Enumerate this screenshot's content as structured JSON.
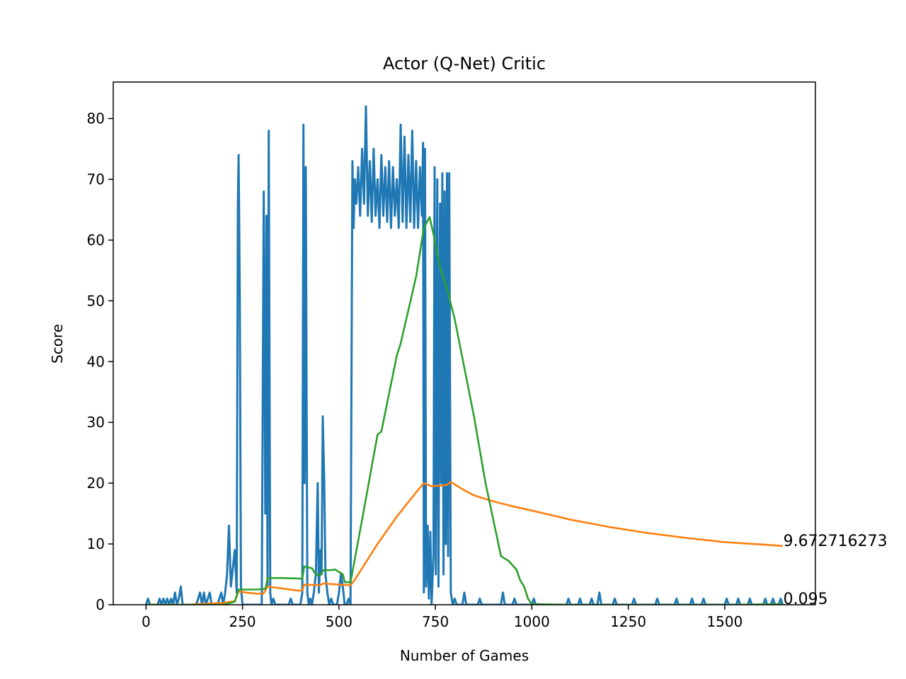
{
  "chart_data": {
    "type": "line",
    "title": "Actor (Q-Net) Critic",
    "xlabel": "Number of Games",
    "ylabel": "Score",
    "xlim": [
      -85,
      1735
    ],
    "ylim": [
      0,
      86
    ],
    "x_ticks": [
      0,
      250,
      500,
      750,
      1000,
      1250,
      1500
    ],
    "y_ticks": [
      0,
      10,
      20,
      30,
      40,
      50,
      60,
      70,
      80
    ],
    "grid": false,
    "legend": "none",
    "series": [
      {
        "color": "#1f77b4",
        "points": [
          [
            0,
            0
          ],
          [
            5,
            1
          ],
          [
            10,
            0
          ],
          [
            30,
            0
          ],
          [
            35,
            1
          ],
          [
            40,
            0
          ],
          [
            45,
            1
          ],
          [
            50,
            0
          ],
          [
            55,
            1
          ],
          [
            60,
            0
          ],
          [
            65,
            1
          ],
          [
            70,
            0
          ],
          [
            75,
            2
          ],
          [
            80,
            0
          ],
          [
            85,
            1
          ],
          [
            90,
            3
          ],
          [
            95,
            0
          ],
          [
            130,
            0
          ],
          [
            135,
            1
          ],
          [
            140,
            2
          ],
          [
            145,
            0
          ],
          [
            150,
            2
          ],
          [
            155,
            0
          ],
          [
            165,
            2
          ],
          [
            170,
            0
          ],
          [
            185,
            0
          ],
          [
            190,
            1
          ],
          [
            195,
            2
          ],
          [
            200,
            0
          ],
          [
            205,
            2
          ],
          [
            210,
            5
          ],
          [
            215,
            13
          ],
          [
            220,
            3
          ],
          [
            225,
            6
          ],
          [
            230,
            9
          ],
          [
            235,
            2
          ],
          [
            238,
            66
          ],
          [
            240,
            74
          ],
          [
            243,
            50
          ],
          [
            246,
            3
          ],
          [
            250,
            0
          ],
          [
            300,
            0
          ],
          [
            305,
            68
          ],
          [
            309,
            15
          ],
          [
            312,
            64
          ],
          [
            315,
            3
          ],
          [
            318,
            78
          ],
          [
            322,
            2
          ],
          [
            325,
            0
          ],
          [
            330,
            1
          ],
          [
            335,
            0
          ],
          [
            370,
            0
          ],
          [
            375,
            1
          ],
          [
            380,
            0
          ],
          [
            400,
            0
          ],
          [
            405,
            2
          ],
          [
            408,
            79
          ],
          [
            411,
            20
          ],
          [
            414,
            72
          ],
          [
            418,
            2
          ],
          [
            422,
            0
          ],
          [
            426,
            1
          ],
          [
            430,
            0
          ],
          [
            435,
            2
          ],
          [
            440,
            5
          ],
          [
            445,
            20
          ],
          [
            448,
            2
          ],
          [
            452,
            9
          ],
          [
            455,
            5
          ],
          [
            458,
            31
          ],
          [
            462,
            20
          ],
          [
            465,
            5
          ],
          [
            470,
            2
          ],
          [
            475,
            0
          ],
          [
            480,
            1
          ],
          [
            485,
            0
          ],
          [
            495,
            0
          ],
          [
            500,
            2
          ],
          [
            505,
            5
          ],
          [
            510,
            3
          ],
          [
            515,
            0
          ],
          [
            520,
            0
          ],
          [
            525,
            1
          ],
          [
            530,
            0
          ],
          [
            535,
            73
          ],
          [
            538,
            62
          ],
          [
            541,
            70
          ],
          [
            545,
            66
          ],
          [
            550,
            72
          ],
          [
            555,
            64
          ],
          [
            560,
            75
          ],
          [
            565,
            66
          ],
          [
            570,
            82
          ],
          [
            575,
            64
          ],
          [
            580,
            73
          ],
          [
            585,
            63
          ],
          [
            590,
            75
          ],
          [
            595,
            64
          ],
          [
            600,
            70
          ],
          [
            605,
            62
          ],
          [
            610,
            74
          ],
          [
            615,
            64
          ],
          [
            620,
            72
          ],
          [
            625,
            63
          ],
          [
            630,
            73
          ],
          [
            635,
            62
          ],
          [
            640,
            72
          ],
          [
            645,
            64
          ],
          [
            650,
            70
          ],
          [
            655,
            62
          ],
          [
            660,
            79
          ],
          [
            665,
            63
          ],
          [
            670,
            77
          ],
          [
            675,
            62
          ],
          [
            680,
            74
          ],
          [
            685,
            63
          ],
          [
            690,
            78
          ],
          [
            695,
            62
          ],
          [
            700,
            73
          ],
          [
            705,
            62
          ],
          [
            710,
            72
          ],
          [
            715,
            64
          ],
          [
            718,
            76
          ],
          [
            720,
            2
          ],
          [
            723,
            75
          ],
          [
            726,
            3
          ],
          [
            730,
            13
          ],
          [
            733,
            1
          ],
          [
            737,
            12
          ],
          [
            740,
            0
          ],
          [
            745,
            8
          ],
          [
            748,
            72
          ],
          [
            751,
            5
          ],
          [
            755,
            70
          ],
          [
            758,
            3
          ],
          [
            762,
            66
          ],
          [
            765,
            20
          ],
          [
            768,
            71
          ],
          [
            771,
            5
          ],
          [
            774,
            68
          ],
          [
            777,
            10
          ],
          [
            780,
            71
          ],
          [
            783,
            8
          ],
          [
            786,
            71
          ],
          [
            790,
            2
          ],
          [
            795,
            0
          ],
          [
            800,
            1
          ],
          [
            805,
            0
          ],
          [
            820,
            0
          ],
          [
            825,
            2
          ],
          [
            830,
            0
          ],
          [
            860,
            0
          ],
          [
            865,
            1
          ],
          [
            870,
            0
          ],
          [
            920,
            0
          ],
          [
            925,
            2
          ],
          [
            930,
            0
          ],
          [
            950,
            0
          ],
          [
            955,
            1
          ],
          [
            960,
            0
          ],
          [
            1000,
            0
          ],
          [
            1005,
            1
          ],
          [
            1010,
            0
          ],
          [
            1090,
            0
          ],
          [
            1095,
            1
          ],
          [
            1100,
            0
          ],
          [
            1120,
            0
          ],
          [
            1125,
            1
          ],
          [
            1130,
            0
          ],
          [
            1150,
            0
          ],
          [
            1155,
            1
          ],
          [
            1160,
            0
          ],
          [
            1170,
            0
          ],
          [
            1175,
            2
          ],
          [
            1180,
            0
          ],
          [
            1210,
            0
          ],
          [
            1215,
            1
          ],
          [
            1220,
            0
          ],
          [
            1260,
            0
          ],
          [
            1265,
            1
          ],
          [
            1270,
            0
          ],
          [
            1320,
            0
          ],
          [
            1325,
            1
          ],
          [
            1330,
            0
          ],
          [
            1370,
            0
          ],
          [
            1375,
            1
          ],
          [
            1380,
            0
          ],
          [
            1410,
            0
          ],
          [
            1415,
            1
          ],
          [
            1420,
            0
          ],
          [
            1440,
            0
          ],
          [
            1445,
            1
          ],
          [
            1450,
            0
          ],
          [
            1500,
            0
          ],
          [
            1505,
            1
          ],
          [
            1510,
            0
          ],
          [
            1530,
            0
          ],
          [
            1535,
            1
          ],
          [
            1540,
            0
          ],
          [
            1560,
            0
          ],
          [
            1565,
            1
          ],
          [
            1570,
            0
          ],
          [
            1600,
            0
          ],
          [
            1605,
            1
          ],
          [
            1610,
            0
          ],
          [
            1620,
            0
          ],
          [
            1625,
            1
          ],
          [
            1630,
            0
          ],
          [
            1640,
            0
          ],
          [
            1645,
            1
          ],
          [
            1650,
            0
          ]
        ]
      },
      {
        "color": "#ff7f0e",
        "points": [
          [
            0,
            0
          ],
          [
            100,
            0
          ],
          [
            200,
            0.3
          ],
          [
            230,
            0.6
          ],
          [
            240,
            2.2
          ],
          [
            260,
            2
          ],
          [
            290,
            1.8
          ],
          [
            305,
            1.9
          ],
          [
            315,
            3
          ],
          [
            350,
            2.7
          ],
          [
            395,
            2.3
          ],
          [
            405,
            2.4
          ],
          [
            410,
            3.3
          ],
          [
            450,
            3.2
          ],
          [
            460,
            3.5
          ],
          [
            500,
            3.3
          ],
          [
            530,
            3.2
          ],
          [
            540,
            4
          ],
          [
            560,
            6
          ],
          [
            600,
            10
          ],
          [
            650,
            14.5
          ],
          [
            700,
            18.5
          ],
          [
            720,
            20
          ],
          [
            740,
            19.5
          ],
          [
            760,
            19.6
          ],
          [
            780,
            19.7
          ],
          [
            790,
            20.2
          ],
          [
            820,
            19
          ],
          [
            850,
            18
          ],
          [
            900,
            17
          ],
          [
            950,
            16.2
          ],
          [
            1000,
            15.5
          ],
          [
            1100,
            14
          ],
          [
            1200,
            12.8
          ],
          [
            1300,
            11.8
          ],
          [
            1400,
            11
          ],
          [
            1500,
            10.3
          ],
          [
            1600,
            9.9
          ],
          [
            1650,
            9.67
          ]
        ]
      },
      {
        "color": "#2ca02c",
        "points": [
          [
            0,
            0
          ],
          [
            200,
            0
          ],
          [
            230,
            0.5
          ],
          [
            240,
            2.5
          ],
          [
            290,
            2.5
          ],
          [
            305,
            2.6
          ],
          [
            310,
            2.7
          ],
          [
            315,
            4.4
          ],
          [
            350,
            4.4
          ],
          [
            400,
            4.3
          ],
          [
            405,
            4.3
          ],
          [
            410,
            6.3
          ],
          [
            430,
            6
          ],
          [
            440,
            5
          ],
          [
            450,
            4.8
          ],
          [
            460,
            5.7
          ],
          [
            480,
            5.7
          ],
          [
            490,
            5.8
          ],
          [
            500,
            5.4
          ],
          [
            510,
            5
          ],
          [
            515,
            3.7
          ],
          [
            530,
            3.7
          ],
          [
            560,
            14
          ],
          [
            600,
            28
          ],
          [
            610,
            28.5
          ],
          [
            650,
            41
          ],
          [
            660,
            43
          ],
          [
            700,
            54
          ],
          [
            720,
            62
          ],
          [
            735,
            63.8
          ],
          [
            745,
            61
          ],
          [
            760,
            56
          ],
          [
            780,
            52
          ],
          [
            800,
            47
          ],
          [
            850,
            31
          ],
          [
            880,
            20
          ],
          [
            900,
            14
          ],
          [
            920,
            8
          ],
          [
            940,
            7.2
          ],
          [
            950,
            6.5
          ],
          [
            960,
            5.8
          ],
          [
            970,
            4
          ],
          [
            980,
            3
          ],
          [
            990,
            1
          ],
          [
            1000,
            0.1
          ],
          [
            1100,
            0
          ],
          [
            1200,
            0
          ],
          [
            1300,
            0
          ],
          [
            1400,
            0
          ],
          [
            1500,
            0
          ],
          [
            1650,
            0.095
          ]
        ]
      }
    ],
    "annotations": [
      {
        "text": "9.672716273",
        "x": 1650,
        "y": 9.67
      },
      {
        "text": "0.095",
        "x": 1650,
        "y": 0.095
      }
    ]
  }
}
